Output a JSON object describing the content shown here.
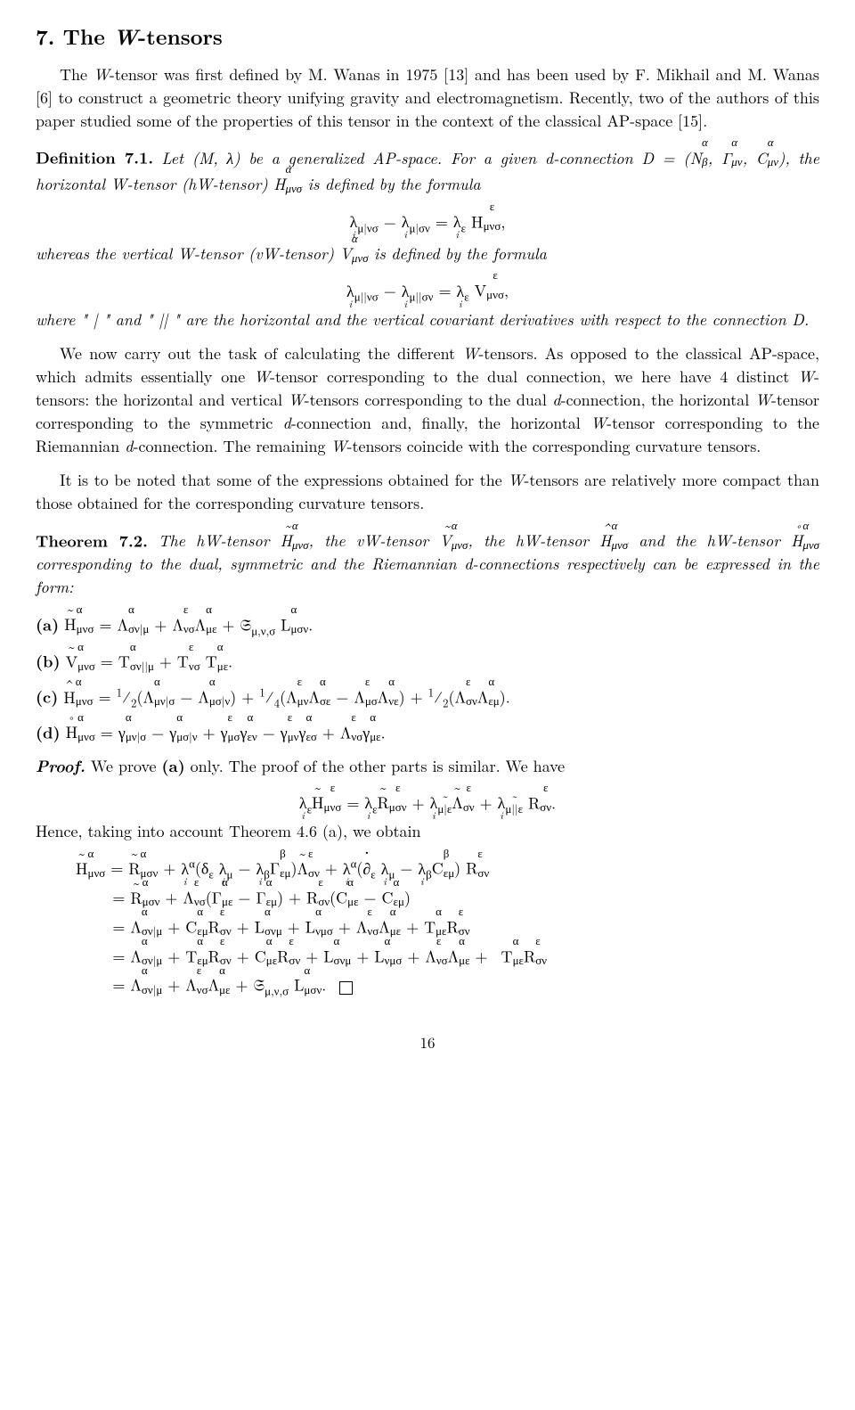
{
  "section": {
    "number": "7.",
    "title": "The W-tensors"
  },
  "intro_para": "The W-tensor was first defined by M. Wanas in 1975 [13] and has been used by F. Mikhail and M. Wanas [6] to construct a geometric theory unifying gravity and electromagnetism. Recently, two of the authors of this paper studied some of the properties of this tensor in the context of the classical AP-space [15].",
  "definition": {
    "label": "Definition 7.1.",
    "lead": "Let (M, λ) be a generalized AP-space. For a given d-connection D = (N",
    "body1": ", the horizontal W-tensor (hW-tensor) H",
    "body2": " is defined by the formula",
    "eq1": "λ_{μ|νσ} − λ_{μ|σν} = λ_ε H^ε_{μνσ},",
    "body3": "whereas the vertical W-tensor (vW-tensor) V",
    "body4": " is defined by the formula",
    "eq2": "λ_{μ||νσ} − λ_{μ||σν} = λ_ε V^ε_{μνσ},",
    "body5": "where \" | \" and \" || \" are the horizontal and the vertical covariant derivatives with respect to the connection D."
  },
  "para2": "We now carry out the task of calculating the different W-tensors. As opposed to the classical AP-space, which admits essentially one W-tensor corresponding to the dual connection, we here have 4 distinct W-tensors: the horizontal and vertical W-tensors corresponding to the dual d-connection, the horizontal W-tensor corresponding to the symmetric d-connection and, finally, the horizontal W-tensor corresponding to the Riemannian d-connection. The remaining W-tensors coincide with the corresponding curvature tensors.",
  "para3": "It is to be noted that some of the expressions obtained for the W-tensors are relatively more compact than those obtained for the corresponding curvature tensors.",
  "theorem": {
    "label": "Theorem 7.2.",
    "lead": "The hW-tensor ",
    "body1": ", the vW-tensor ",
    "body2": ", the hW-tensor ",
    "body3": " and the hW-tensor ",
    "body4": " corresponding to the dual, symmetric and the Riemannian d-connections respectively can be expressed in the form:",
    "items": {
      "a": "(a)",
      "b": "(b)",
      "c": "(c)",
      "d": "(d)"
    }
  },
  "proof": {
    "label": "Proof.",
    "lead": "We prove (a) only. The proof of the other parts is similar. We have",
    "hence": "Hence, taking into account Theorem 4.6 (a), we obtain"
  },
  "page_number": "16"
}
